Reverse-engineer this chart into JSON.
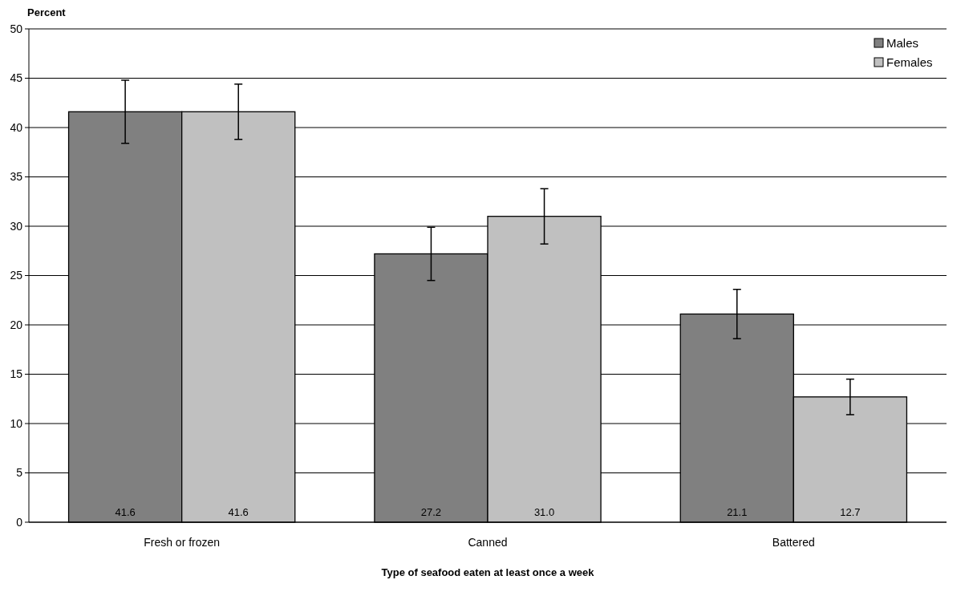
{
  "chart_data": {
    "type": "bar",
    "ylabel": "Percent",
    "xlabel": "Type of seafood eaten at least once a week",
    "categories": [
      "Fresh or frozen",
      "Canned",
      "Battered"
    ],
    "series": [
      {
        "name": "Males",
        "color": "#808080",
        "values": [
          41.6,
          27.2,
          21.1
        ],
        "errors": [
          3.2,
          2.7,
          2.5
        ]
      },
      {
        "name": "Females",
        "color": "#c0c0c0",
        "values": [
          41.6,
          31.0,
          12.7
        ],
        "errors": [
          2.8,
          2.8,
          1.8
        ]
      }
    ],
    "value_labels": [
      [
        "41.6",
        "27.2",
        "21.1"
      ],
      [
        "41.6",
        "31.0",
        "12.7"
      ]
    ],
    "ylim": [
      0,
      50
    ],
    "yticks": [
      0,
      5,
      10,
      15,
      20,
      25,
      30,
      35,
      40,
      45,
      50
    ],
    "grid": "y",
    "legend": "top right"
  }
}
